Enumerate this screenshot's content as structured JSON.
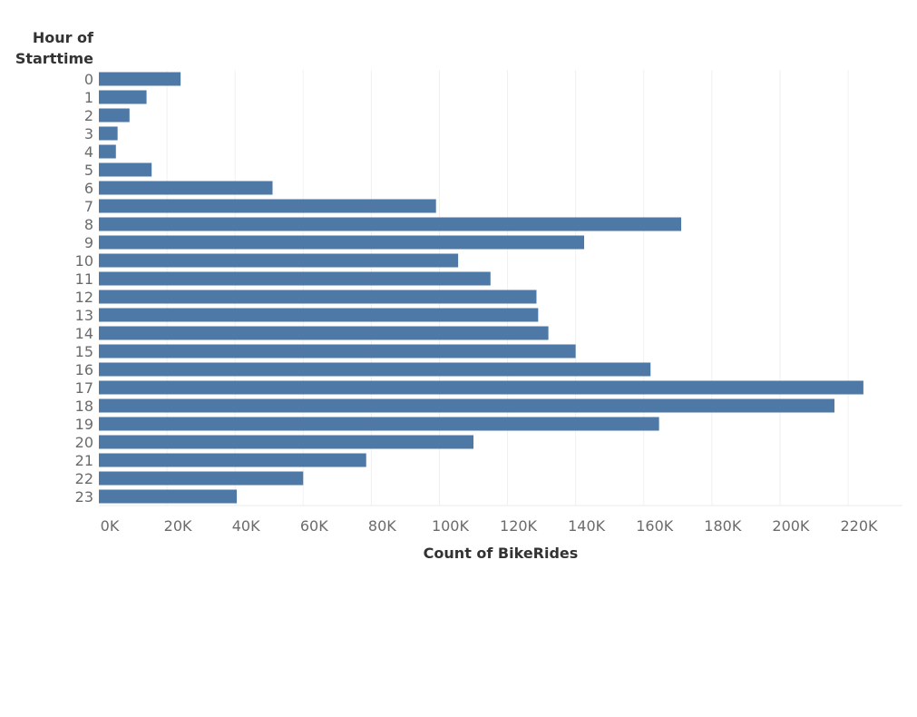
{
  "chart_data": {
    "type": "bar",
    "orientation": "horizontal",
    "ylabel_line1": "Hour of",
    "ylabel_line2": "Starttime",
    "xlabel": "Count of BikeRides",
    "categories": [
      "0",
      "1",
      "2",
      "3",
      "4",
      "5",
      "6",
      "7",
      "8",
      "9",
      "10",
      "11",
      "12",
      "13",
      "14",
      "15",
      "16",
      "17",
      "18",
      "19",
      "20",
      "21",
      "22",
      "23"
    ],
    "values": [
      24000,
      14000,
      9000,
      5500,
      5000,
      15500,
      51000,
      99000,
      171000,
      142500,
      105500,
      115000,
      128500,
      129000,
      132000,
      140000,
      162000,
      224500,
      216000,
      164500,
      110000,
      78500,
      60000,
      40500
    ],
    "xticks": [
      "0K",
      "20K",
      "40K",
      "60K",
      "80K",
      "100K",
      "120K",
      "140K",
      "160K",
      "180K",
      "200K",
      "220K"
    ],
    "xtick_values": [
      0,
      20000,
      40000,
      60000,
      80000,
      100000,
      120000,
      140000,
      160000,
      180000,
      200000,
      220000
    ],
    "xlim": [
      0,
      236000
    ],
    "grid": true,
    "bar_color": "#4e79a7"
  }
}
